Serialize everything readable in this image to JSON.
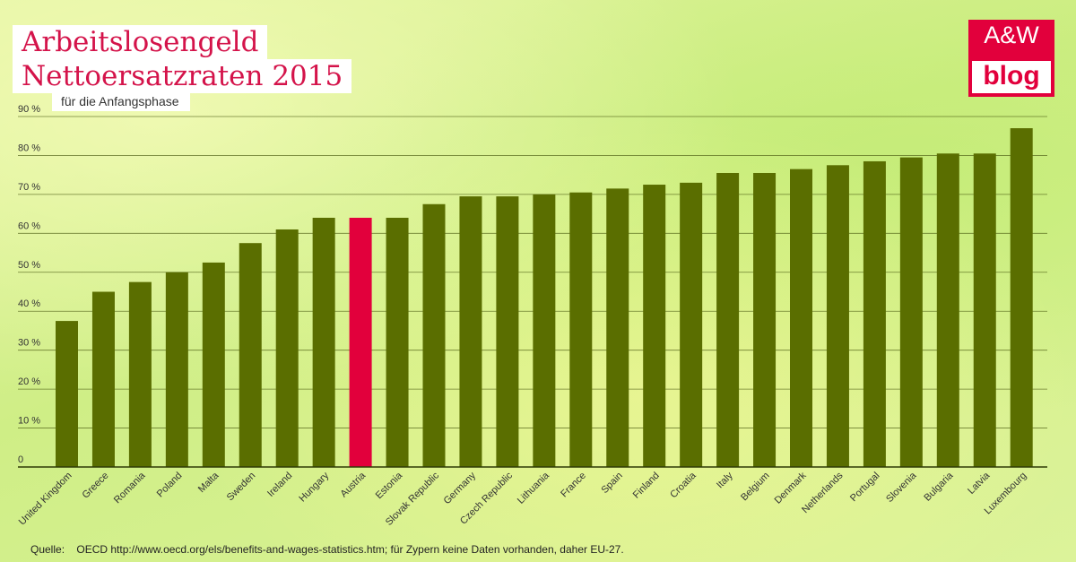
{
  "header": {
    "title_line1": "Arbeitslosengeld",
    "title_line2": "Nettoersatzraten 2015",
    "subtitle": "für die Anfangsphase"
  },
  "logo": {
    "top": "A&W",
    "bottom": "blog",
    "color": "#e2003c"
  },
  "footer": {
    "source_label": "Quelle:",
    "source_text": "OECD http://www.oecd.org/els/benefits-and-wages-statistics.htm; für Zypern keine Daten vorhanden, daher EU-27."
  },
  "colors": {
    "bar": "#5a6e00",
    "highlight": "#e2003c",
    "title": "#d4134a"
  },
  "chart_data": {
    "type": "bar",
    "categories": [
      "United Kingdom",
      "Greece",
      "Romania",
      "Poland",
      "Malta",
      "Sweden",
      "Ireland",
      "Hungary",
      "Austria",
      "Estonia",
      "Slovak Republic",
      "Germany",
      "Czech Republic",
      "Lithuania",
      "France",
      "Spain",
      "Finland",
      "Croatia",
      "Italy",
      "Belgium",
      "Denmark",
      "Netherlands",
      "Portugal",
      "Slovenia",
      "Bulgaria",
      "Latvia",
      "Luxembourg"
    ],
    "values": [
      37.5,
      45,
      47.5,
      50,
      52.5,
      57.5,
      61,
      64,
      64,
      64,
      67.5,
      69.5,
      69.5,
      70,
      70.5,
      71.5,
      72.5,
      73,
      75.5,
      75.5,
      76.5,
      77.5,
      78.5,
      79.5,
      80.5,
      80.5,
      87
    ],
    "highlight": "Austria",
    "y_ticks": [
      "0",
      "10 %",
      "20 %",
      "30 %",
      "40 %",
      "50 %",
      "60 %",
      "70 %",
      "80 %",
      "90 %"
    ],
    "ylim": [
      0,
      90
    ],
    "grid": true
  }
}
